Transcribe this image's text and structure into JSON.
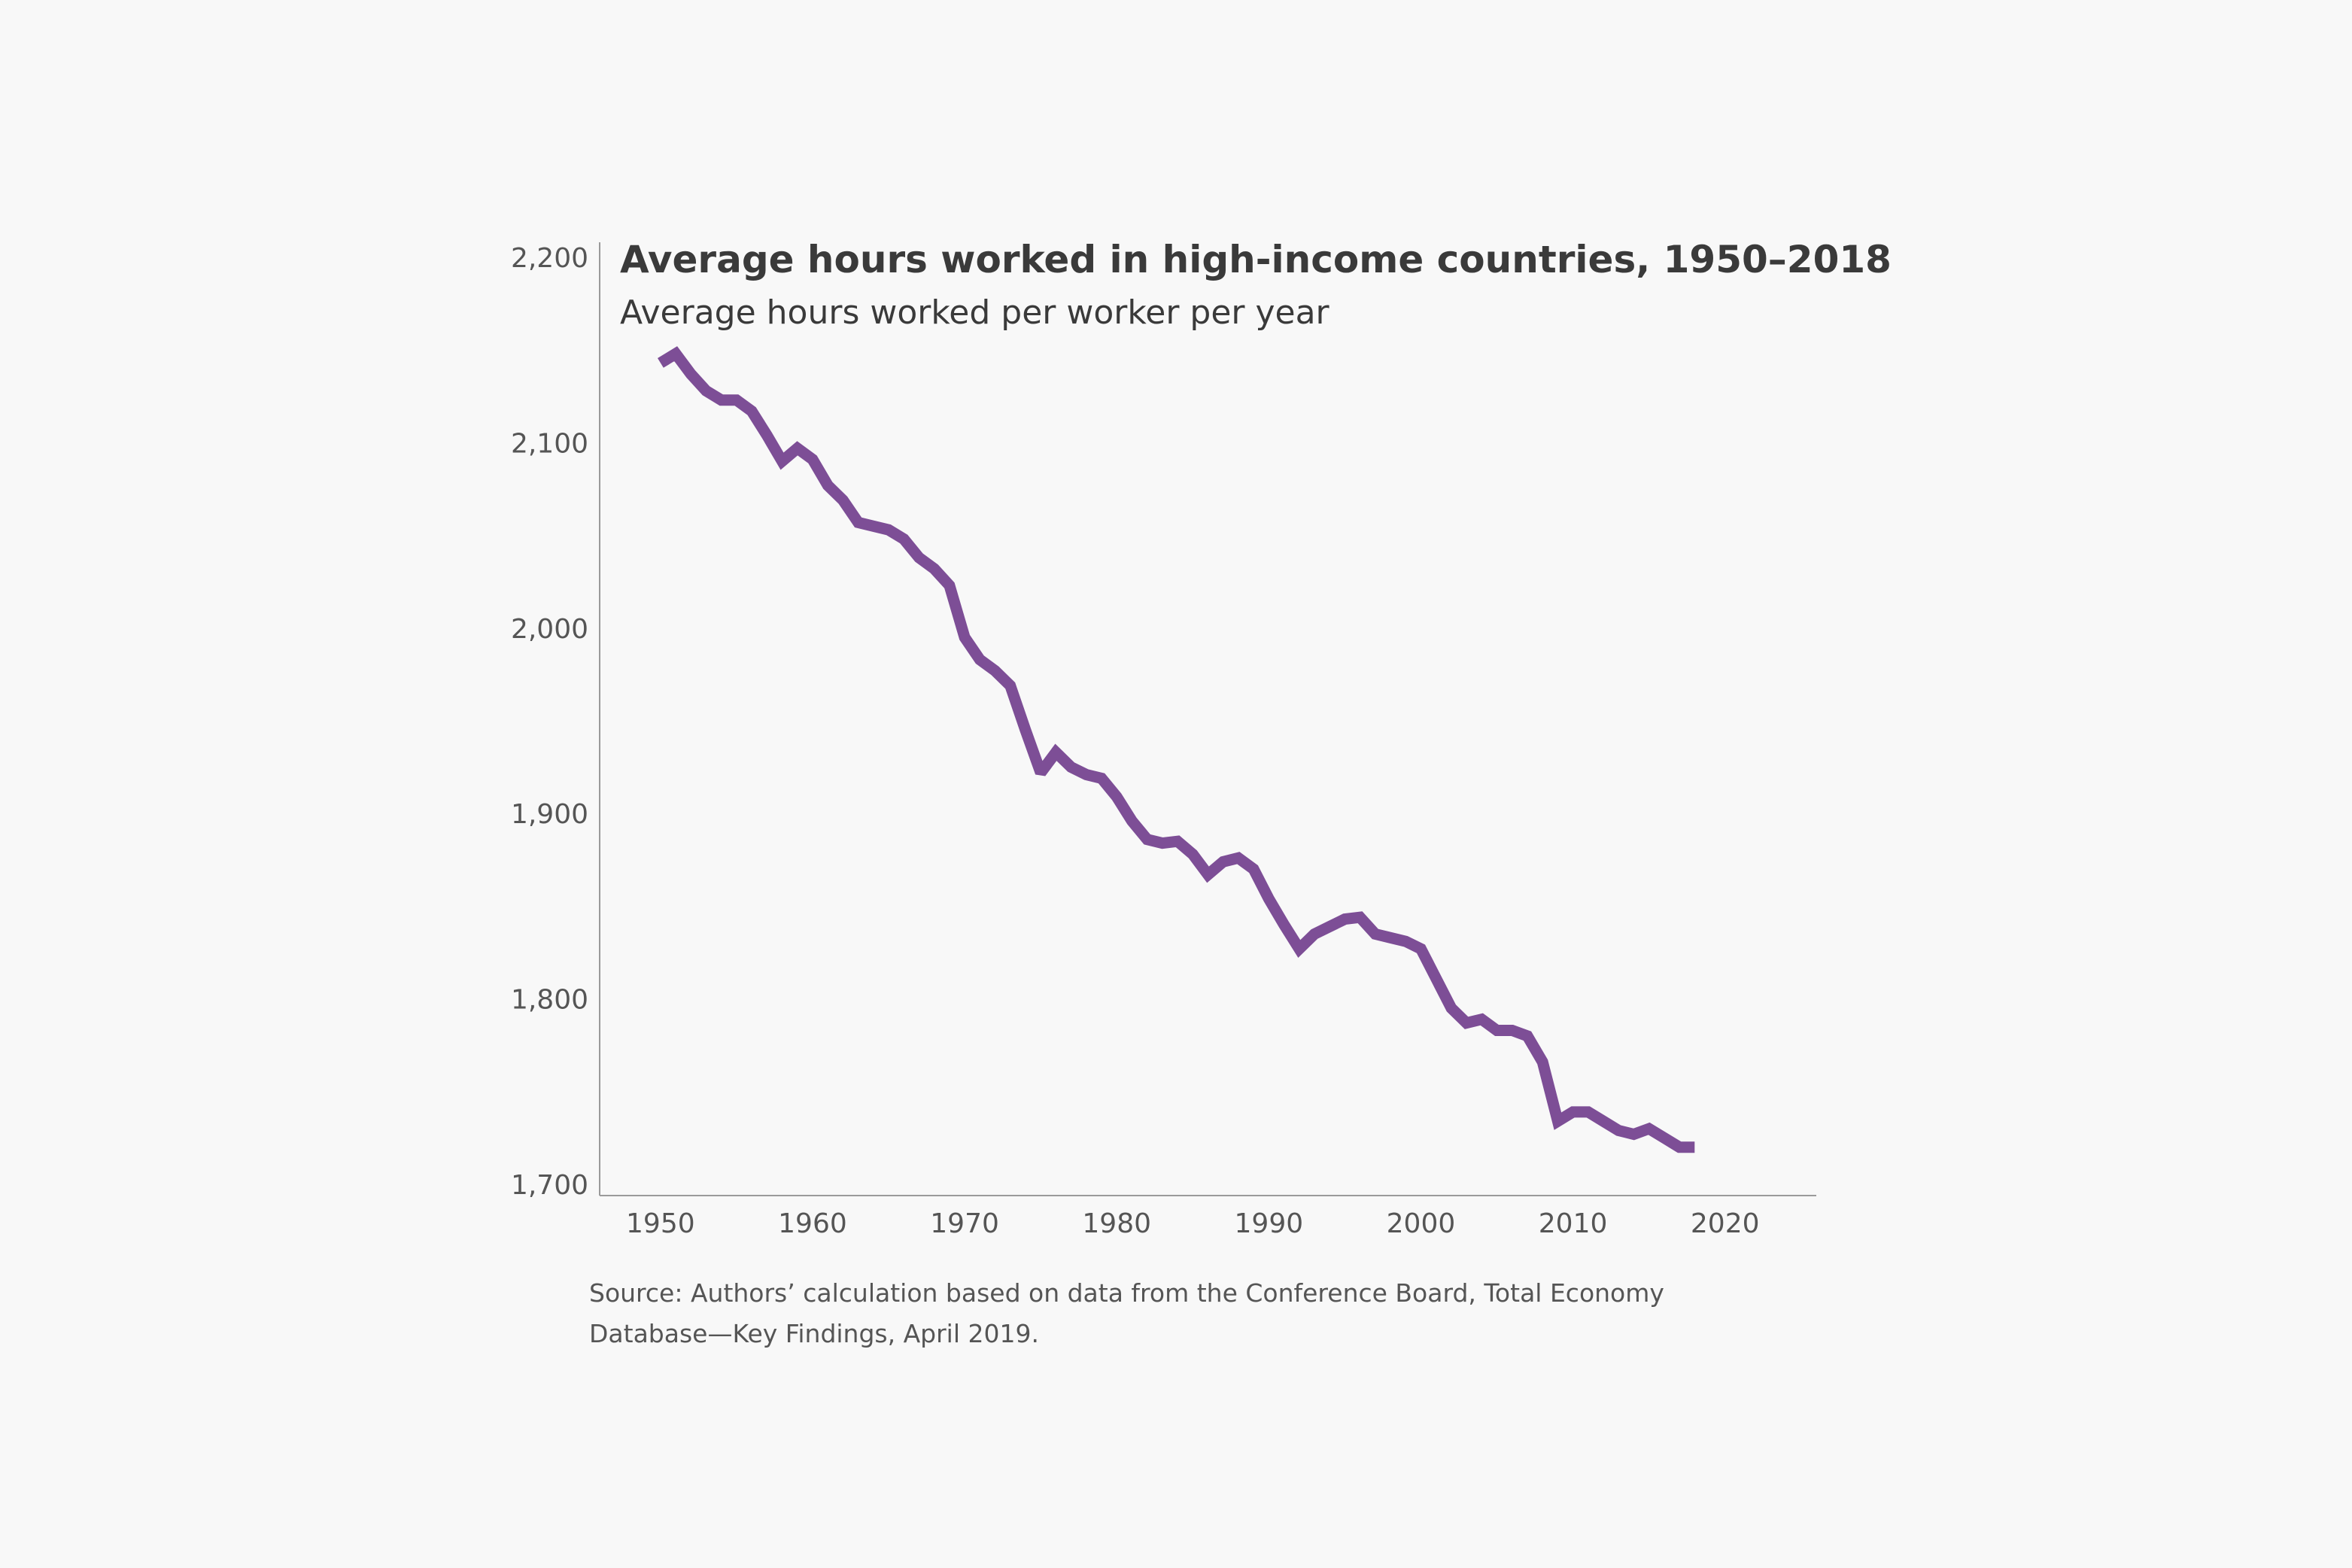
{
  "chart_data": {
    "type": "line",
    "title": "Average hours worked in high-income countries, 1950–2018",
    "subtitle": "Average hours worked per worker per year",
    "xlabel": "",
    "ylabel": "",
    "xlim": [
      1946,
      2026
    ],
    "ylim": [
      1700,
      2200
    ],
    "x_ticks": [
      1950,
      1960,
      1970,
      1980,
      1990,
      2000,
      2010,
      2020
    ],
    "x_tick_labels": [
      "1950",
      "1960",
      "1970",
      "1980",
      "1990",
      "2000",
      "2010",
      "2020"
    ],
    "y_ticks": [
      1700,
      1800,
      1900,
      2000,
      2100,
      2200
    ],
    "y_tick_labels": [
      "1,700",
      "1,800",
      "1,900",
      "2,000",
      "2,100",
      "2,200"
    ],
    "grid": false,
    "legend": "none",
    "series": [
      {
        "color": "#7d4e96",
        "x": [
          1950,
          1951,
          1952,
          1953,
          1954,
          1955,
          1956,
          1957,
          1958,
          1959,
          1960,
          1961,
          1962,
          1963,
          1964,
          1965,
          1966,
          1967,
          1968,
          1969,
          1970,
          1971,
          1972,
          1973,
          1974,
          1975,
          1976,
          1977,
          1978,
          1979,
          1980,
          1981,
          1982,
          1983,
          1984,
          1985,
          1986,
          1987,
          1988,
          1989,
          1990,
          1991,
          1992,
          1993,
          1994,
          1995,
          1996,
          1997,
          1998,
          1999,
          2000,
          2001,
          2002,
          2003,
          2004,
          2005,
          2006,
          2007,
          2008,
          2009,
          2010,
          2011,
          2012,
          2013,
          2014,
          2015,
          2016,
          2017,
          2018
        ],
        "y": [
          2143,
          2148,
          2137,
          2128,
          2123,
          2123,
          2117,
          2104,
          2090,
          2097,
          2091,
          2077,
          2069,
          2057,
          2055,
          2053,
          2048,
          2038,
          2032,
          2023,
          1995,
          1983,
          1977,
          1969,
          1945,
          1922,
          1933,
          1925,
          1921,
          1919,
          1909,
          1896,
          1886,
          1884,
          1885,
          1878,
          1867,
          1874,
          1876,
          1870,
          1854,
          1840,
          1827,
          1835,
          1839,
          1843,
          1844,
          1835,
          1833,
          1831,
          1827,
          1811,
          1795,
          1787,
          1789,
          1783,
          1783,
          1780,
          1766,
          1734,
          1739,
          1739,
          1734,
          1729,
          1727,
          1730,
          1725,
          1720,
          1720
        ]
      }
    ],
    "source_lines": [
      "Source: Authors’ calculation based on data from the Conference Board, Total Economy",
      "Database—Key Findings, April 2019."
    ]
  }
}
